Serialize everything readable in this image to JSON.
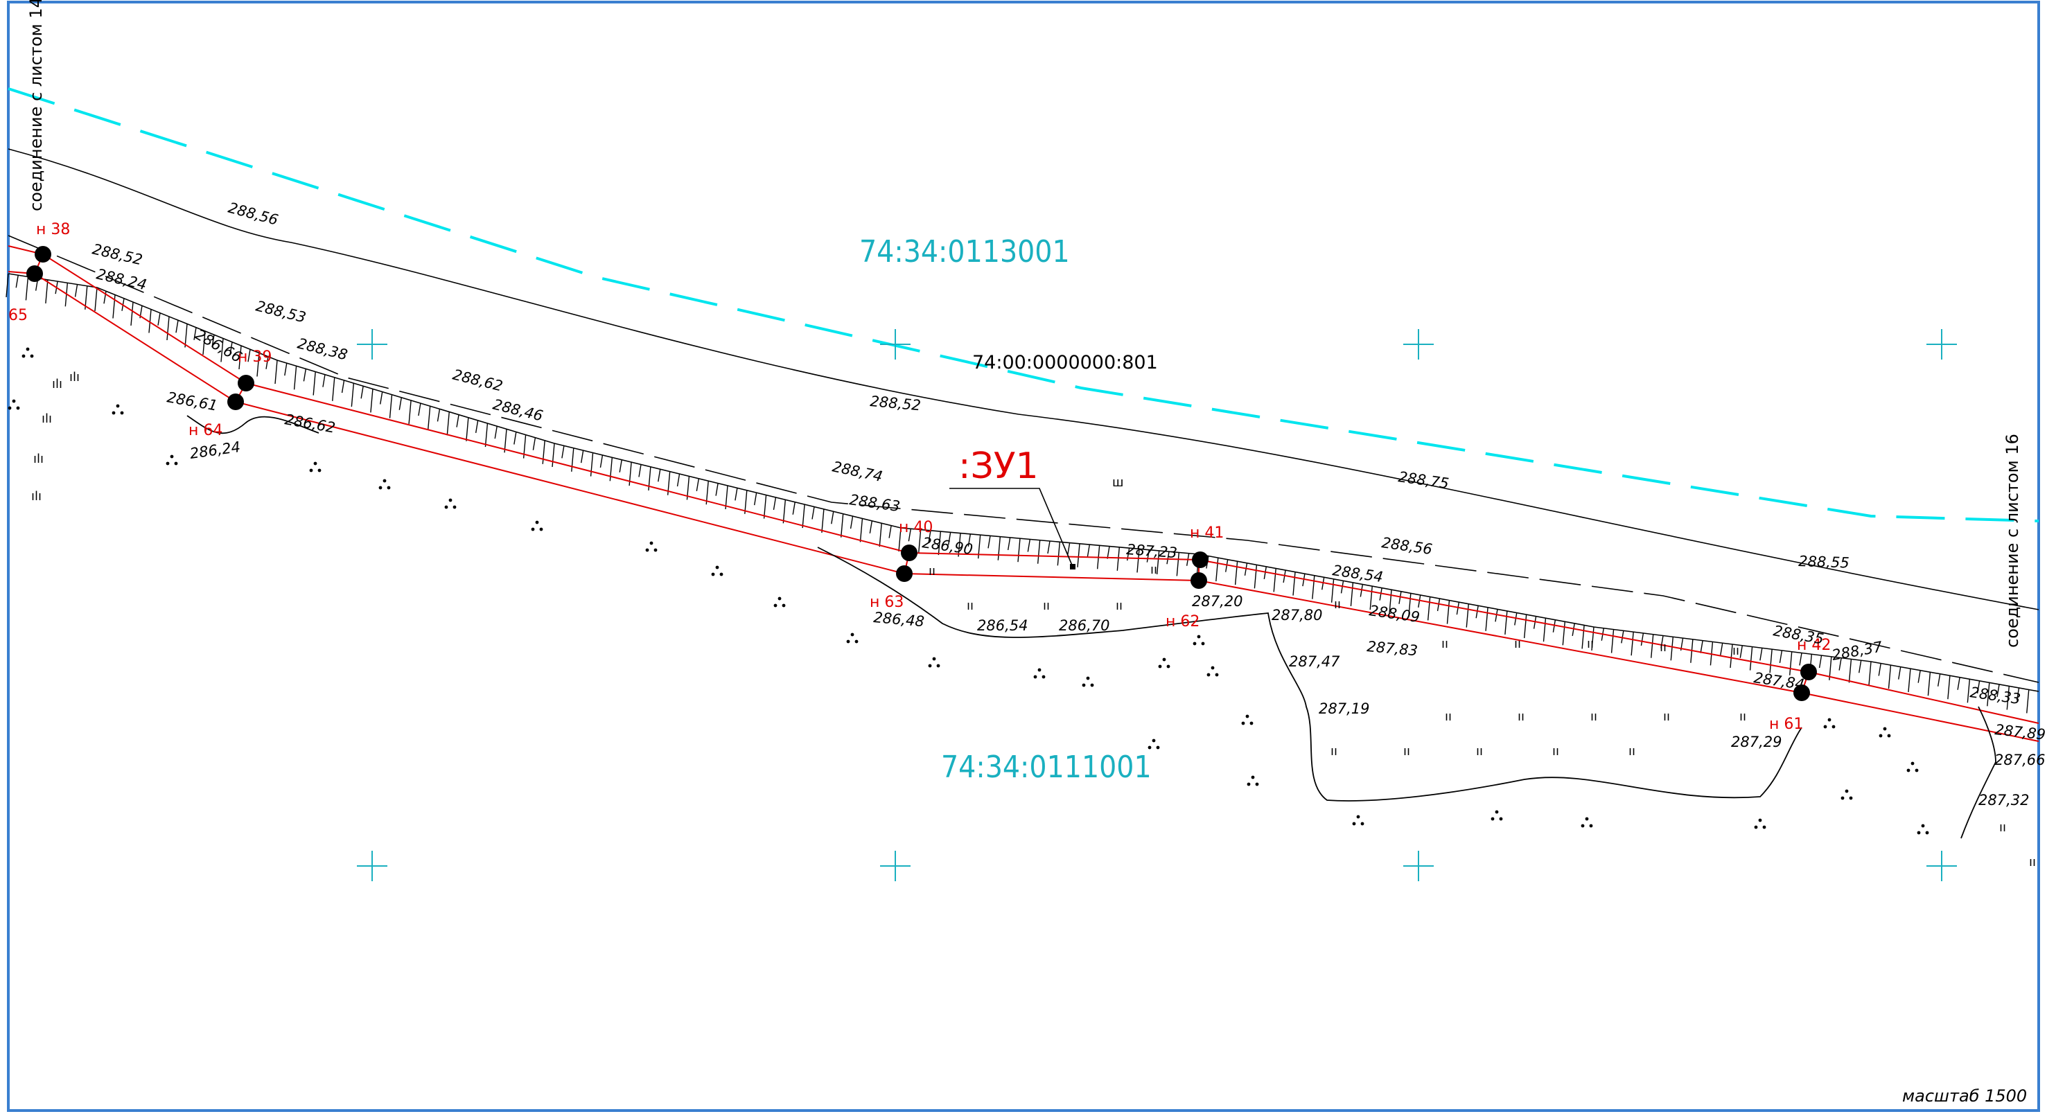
{
  "parcels": {
    "north": "74:34:0113001",
    "south": "74:34:0111001",
    "road": "74:00:0000000:801"
  },
  "new_parcel_label": ":ЗУ1",
  "sheet_joins": {
    "left": "соединение с листом 14",
    "right": "соединение с листом 16"
  },
  "scale_label": "масштаб 1500",
  "points": [
    {
      "label": "н  38"
    },
    {
      "label": "65"
    },
    {
      "label": "н  39"
    },
    {
      "label": "н  64"
    },
    {
      "label": "н  40"
    },
    {
      "label": "н  63"
    },
    {
      "label": "н  41"
    },
    {
      "label": "н  62"
    },
    {
      "label": "н  42"
    },
    {
      "label": "н  61"
    }
  ],
  "elevations": [
    "288,56",
    "288,52",
    "288,24",
    "288,53",
    "288,38",
    "286,66",
    "288,62",
    "288,46",
    "286,61",
    "286,62",
    "286,24",
    "288,74",
    "288,63",
    "286,90",
    "287,23",
    "288,52",
    "288,75",
    "288,56",
    "288,54",
    "288,09",
    "288,55",
    "287,20",
    "286,48",
    "286,54",
    "286,70",
    "287,80",
    "287,83",
    "287,47",
    "287,19",
    "288,35",
    "288,37",
    "287,84",
    "288,33",
    "287,89",
    "287,66",
    "287,29",
    "287,32"
  ],
  "symbols": {
    "grass": "ılı",
    "bush": "ш",
    "ditch": "ıı"
  },
  "colors": {
    "boundary": "#e00000",
    "cadastral_dash": "#00e5ee",
    "parcel_text": "#1ab0c0",
    "frame": "#3a7fd0"
  }
}
